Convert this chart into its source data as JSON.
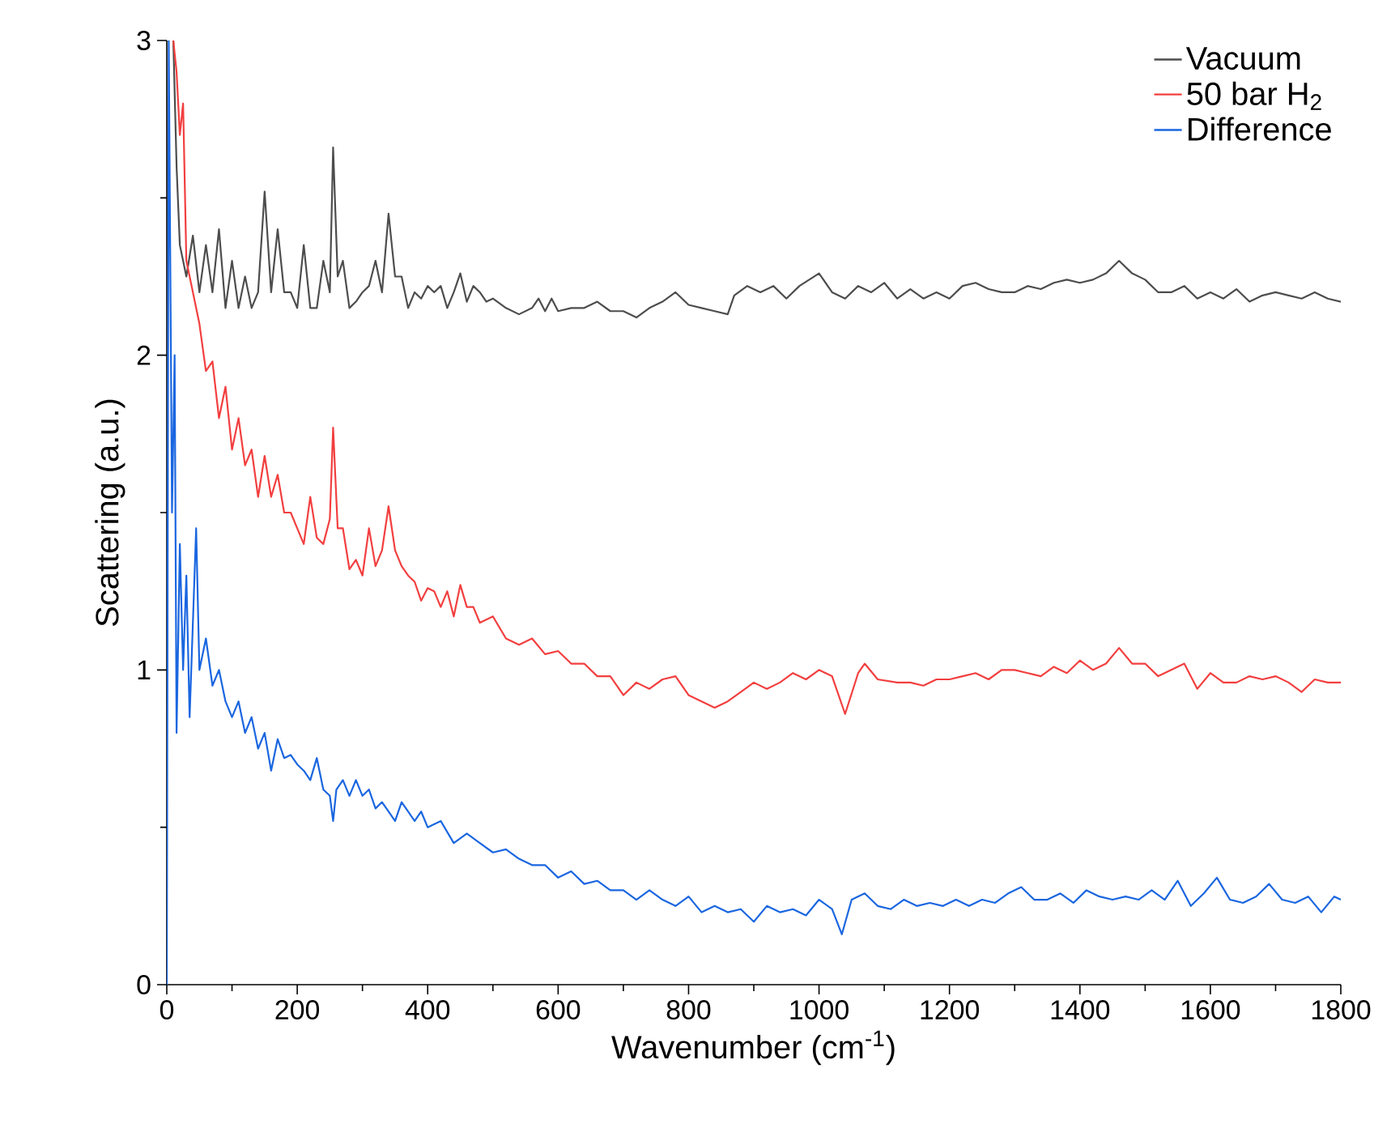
{
  "chart_data": {
    "type": "line",
    "xlabel": "Wavenumber (cm$^{-1}$)",
    "ylabel": "Scattering (a.u.)",
    "xlim": [
      0,
      1800
    ],
    "ylim": [
      0,
      3
    ],
    "xticks": [
      0,
      200,
      400,
      600,
      800,
      1000,
      1200,
      1400,
      1600,
      1800
    ],
    "yticks": [
      0,
      1,
      2,
      3
    ],
    "grid": false,
    "legend": "top right",
    "marker": "none",
    "line_style": "solid",
    "series": [
      {
        "name": "Vacuum",
        "color": "#4d4d4d",
        "x": [
          10,
          15,
          20,
          30,
          40,
          50,
          60,
          70,
          80,
          90,
          100,
          110,
          120,
          130,
          140,
          150,
          160,
          170,
          180,
          190,
          200,
          210,
          220,
          230,
          240,
          250,
          255,
          262,
          270,
          280,
          290,
          300,
          310,
          320,
          330,
          340,
          350,
          360,
          370,
          380,
          390,
          400,
          410,
          420,
          430,
          440,
          450,
          460,
          470,
          480,
          490,
          500,
          520,
          540,
          560,
          570,
          580,
          590,
          600,
          620,
          640,
          660,
          680,
          700,
          720,
          740,
          760,
          780,
          800,
          820,
          840,
          860,
          870,
          890,
          910,
          930,
          950,
          970,
          1000,
          1020,
          1040,
          1060,
          1080,
          1100,
          1120,
          1140,
          1160,
          1180,
          1200,
          1220,
          1240,
          1260,
          1280,
          1300,
          1320,
          1340,
          1360,
          1380,
          1400,
          1420,
          1440,
          1460,
          1480,
          1500,
          1520,
          1540,
          1560,
          1580,
          1600,
          1620,
          1640,
          1660,
          1680,
          1700,
          1720,
          1740,
          1760,
          1780,
          1800
        ],
        "values": [
          3.0,
          2.6,
          2.35,
          2.25,
          2.38,
          2.2,
          2.35,
          2.2,
          2.4,
          2.15,
          2.3,
          2.15,
          2.25,
          2.15,
          2.2,
          2.52,
          2.2,
          2.4,
          2.2,
          2.2,
          2.15,
          2.35,
          2.15,
          2.15,
          2.3,
          2.2,
          2.66,
          2.25,
          2.3,
          2.15,
          2.17,
          2.2,
          2.22,
          2.3,
          2.2,
          2.45,
          2.25,
          2.25,
          2.15,
          2.2,
          2.18,
          2.22,
          2.2,
          2.22,
          2.15,
          2.2,
          2.26,
          2.17,
          2.22,
          2.2,
          2.17,
          2.18,
          2.15,
          2.13,
          2.15,
          2.18,
          2.14,
          2.18,
          2.14,
          2.15,
          2.15,
          2.17,
          2.14,
          2.14,
          2.12,
          2.15,
          2.17,
          2.2,
          2.16,
          2.15,
          2.14,
          2.13,
          2.19,
          2.22,
          2.2,
          2.22,
          2.18,
          2.22,
          2.26,
          2.2,
          2.18,
          2.22,
          2.2,
          2.23,
          2.18,
          2.21,
          2.18,
          2.2,
          2.18,
          2.22,
          2.23,
          2.21,
          2.2,
          2.2,
          2.22,
          2.21,
          2.23,
          2.24,
          2.23,
          2.24,
          2.26,
          2.3,
          2.26,
          2.24,
          2.2,
          2.2,
          2.22,
          2.18,
          2.2,
          2.18,
          2.21,
          2.17,
          2.19,
          2.2,
          2.19,
          2.18,
          2.2,
          2.18,
          2.17
        ]
      },
      {
        "name": "50 bar H$_{2}$",
        "color": "#f23f3f",
        "x": [
          10,
          15,
          20,
          25,
          30,
          40,
          50,
          60,
          70,
          80,
          90,
          100,
          110,
          120,
          130,
          140,
          150,
          160,
          170,
          180,
          190,
          200,
          210,
          220,
          230,
          240,
          250,
          255,
          262,
          270,
          280,
          290,
          300,
          310,
          320,
          330,
          340,
          350,
          360,
          370,
          380,
          390,
          400,
          410,
          420,
          430,
          440,
          450,
          460,
          470,
          480,
          500,
          520,
          540,
          560,
          580,
          600,
          620,
          640,
          660,
          680,
          700,
          720,
          740,
          760,
          780,
          800,
          820,
          840,
          860,
          880,
          900,
          920,
          940,
          960,
          980,
          1000,
          1020,
          1040,
          1060,
          1070,
          1090,
          1120,
          1140,
          1160,
          1180,
          1200,
          1220,
          1240,
          1260,
          1280,
          1300,
          1320,
          1340,
          1360,
          1380,
          1400,
          1420,
          1440,
          1460,
          1480,
          1500,
          1520,
          1540,
          1560,
          1580,
          1600,
          1620,
          1640,
          1660,
          1680,
          1700,
          1720,
          1740,
          1760,
          1780,
          1800
        ],
        "values": [
          3.0,
          2.9,
          2.7,
          2.8,
          2.3,
          2.2,
          2.1,
          1.95,
          1.98,
          1.8,
          1.9,
          1.7,
          1.8,
          1.65,
          1.7,
          1.55,
          1.68,
          1.55,
          1.62,
          1.5,
          1.5,
          1.45,
          1.4,
          1.55,
          1.42,
          1.4,
          1.48,
          1.77,
          1.45,
          1.45,
          1.32,
          1.35,
          1.3,
          1.45,
          1.33,
          1.38,
          1.52,
          1.38,
          1.33,
          1.3,
          1.28,
          1.22,
          1.26,
          1.25,
          1.2,
          1.25,
          1.17,
          1.27,
          1.2,
          1.2,
          1.15,
          1.17,
          1.1,
          1.08,
          1.1,
          1.05,
          1.06,
          1.02,
          1.02,
          0.98,
          0.98,
          0.92,
          0.96,
          0.94,
          0.97,
          0.98,
          0.92,
          0.9,
          0.88,
          0.9,
          0.93,
          0.96,
          0.94,
          0.96,
          0.99,
          0.97,
          1.0,
          0.98,
          0.86,
          0.99,
          1.02,
          0.97,
          0.96,
          0.96,
          0.95,
          0.97,
          0.97,
          0.98,
          0.99,
          0.97,
          1.0,
          1.0,
          0.99,
          0.98,
          1.01,
          0.99,
          1.03,
          1.0,
          1.02,
          1.07,
          1.02,
          1.02,
          0.98,
          1.0,
          1.02,
          0.94,
          0.99,
          0.96,
          0.96,
          0.98,
          0.97,
          0.98,
          0.96,
          0.93,
          0.97,
          0.96,
          0.96
        ]
      },
      {
        "name": "Difference",
        "color": "#1a66e0",
        "x": [
          0,
          3,
          8,
          12,
          15,
          20,
          25,
          30,
          35,
          40,
          45,
          50,
          60,
          70,
          80,
          90,
          100,
          110,
          120,
          130,
          140,
          150,
          160,
          170,
          180,
          190,
          200,
          210,
          220,
          230,
          240,
          250,
          255,
          260,
          270,
          280,
          290,
          300,
          310,
          320,
          330,
          340,
          350,
          360,
          370,
          380,
          390,
          400,
          420,
          440,
          460,
          480,
          500,
          520,
          540,
          560,
          580,
          600,
          620,
          640,
          660,
          680,
          700,
          720,
          740,
          760,
          780,
          800,
          820,
          840,
          860,
          880,
          900,
          920,
          940,
          960,
          980,
          1000,
          1020,
          1035,
          1050,
          1070,
          1090,
          1110,
          1130,
          1150,
          1170,
          1190,
          1210,
          1230,
          1250,
          1270,
          1290,
          1310,
          1330,
          1350,
          1370,
          1390,
          1410,
          1430,
          1450,
          1470,
          1490,
          1510,
          1530,
          1550,
          1570,
          1590,
          1610,
          1630,
          1650,
          1670,
          1690,
          1710,
          1730,
          1750,
          1770,
          1790,
          1800
        ],
        "values": [
          0.0,
          3.0,
          1.5,
          2.0,
          0.8,
          1.4,
          1.0,
          1.3,
          0.85,
          1.15,
          1.45,
          1.0,
          1.1,
          0.95,
          1.0,
          0.9,
          0.85,
          0.9,
          0.8,
          0.85,
          0.75,
          0.8,
          0.68,
          0.78,
          0.72,
          0.73,
          0.7,
          0.68,
          0.65,
          0.72,
          0.62,
          0.6,
          0.52,
          0.62,
          0.65,
          0.6,
          0.65,
          0.6,
          0.62,
          0.56,
          0.58,
          0.55,
          0.52,
          0.58,
          0.55,
          0.52,
          0.55,
          0.5,
          0.52,
          0.45,
          0.48,
          0.45,
          0.42,
          0.43,
          0.4,
          0.38,
          0.38,
          0.34,
          0.36,
          0.32,
          0.33,
          0.3,
          0.3,
          0.27,
          0.3,
          0.27,
          0.25,
          0.28,
          0.23,
          0.25,
          0.23,
          0.24,
          0.2,
          0.25,
          0.23,
          0.24,
          0.22,
          0.27,
          0.24,
          0.16,
          0.27,
          0.29,
          0.25,
          0.24,
          0.27,
          0.25,
          0.26,
          0.25,
          0.27,
          0.25,
          0.27,
          0.26,
          0.29,
          0.31,
          0.27,
          0.27,
          0.29,
          0.26,
          0.3,
          0.28,
          0.27,
          0.28,
          0.27,
          0.3,
          0.27,
          0.33,
          0.25,
          0.29,
          0.34,
          0.27,
          0.26,
          0.28,
          0.32,
          0.27,
          0.26,
          0.28,
          0.23,
          0.28,
          0.27
        ]
      }
    ]
  }
}
